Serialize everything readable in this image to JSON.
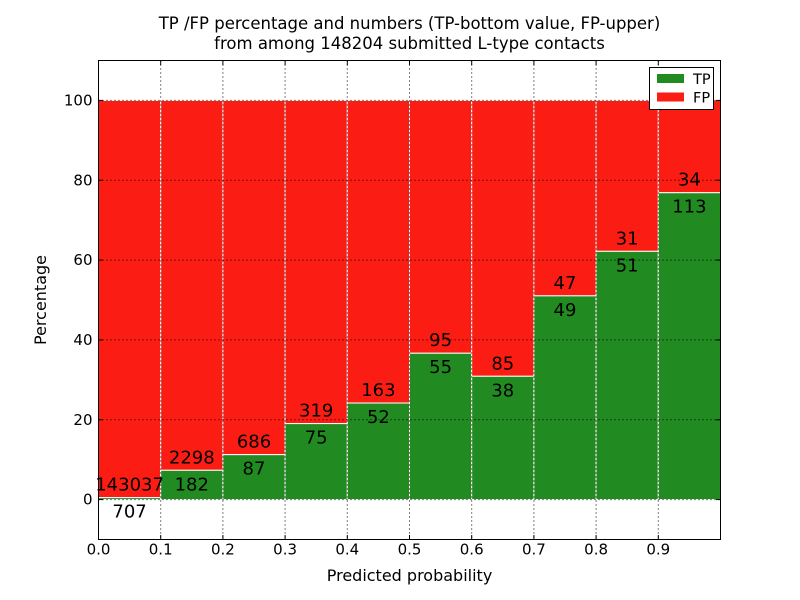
{
  "figure": {
    "background": "#ffffff"
  },
  "chart_data": {
    "type": "bar",
    "variant": "stacked-percentage-histogram",
    "title_lines": [
      "TP /FP percentage and numbers (TP-bottom value, FP-upper)",
      "from among 148204 submitted L-type contacts"
    ],
    "xlabel": "Predicted probability",
    "ylabel": "Percentage",
    "total_submitted": 148204,
    "bin_edges": [
      0.0,
      0.1,
      0.2,
      0.3,
      0.4,
      0.5,
      0.6,
      0.7,
      0.8,
      0.9,
      1.0
    ],
    "categories": [
      "0.0-0.1",
      "0.1-0.2",
      "0.2-0.3",
      "0.3-0.4",
      "0.4-0.5",
      "0.5-0.6",
      "0.6-0.7",
      "0.7-0.8",
      "0.8-0.9",
      "0.9-1.0"
    ],
    "series": [
      {
        "name": "TP",
        "color": "#218b21",
        "counts": [
          707,
          182,
          87,
          75,
          52,
          55,
          38,
          49,
          51,
          113
        ],
        "percent": [
          0.49,
          7.34,
          11.25,
          19.04,
          24.19,
          36.67,
          30.89,
          51.04,
          62.2,
          76.87
        ]
      },
      {
        "name": "FP",
        "color": "#fb1c13",
        "counts": [
          143037,
          2298,
          686,
          319,
          163,
          95,
          85,
          47,
          31,
          34
        ],
        "percent": [
          99.51,
          92.66,
          88.75,
          80.96,
          75.81,
          63.33,
          69.11,
          48.96,
          37.8,
          23.13
        ]
      }
    ],
    "x_ticks": {
      "values": [
        0.0,
        0.1,
        0.2,
        0.3,
        0.4,
        0.5,
        0.6,
        0.7,
        0.8,
        0.9
      ],
      "labels": [
        "0.0",
        "0.1",
        "0.2",
        "0.3",
        "0.4",
        "0.5",
        "0.6",
        "0.7",
        "0.8",
        "0.9"
      ]
    },
    "y_ticks": {
      "values": [
        0,
        20,
        40,
        60,
        80,
        100
      ],
      "labels": [
        "0",
        "20",
        "40",
        "60",
        "80",
        "100"
      ]
    },
    "xlim": [
      0,
      1.0
    ],
    "ylim": [
      -10,
      110
    ],
    "grid": {
      "style": "dotted",
      "color": "#000000"
    },
    "bar_edge_color": "#ffffff",
    "legend": {
      "position": "upper right",
      "entries": [
        "TP",
        "FP"
      ]
    }
  }
}
